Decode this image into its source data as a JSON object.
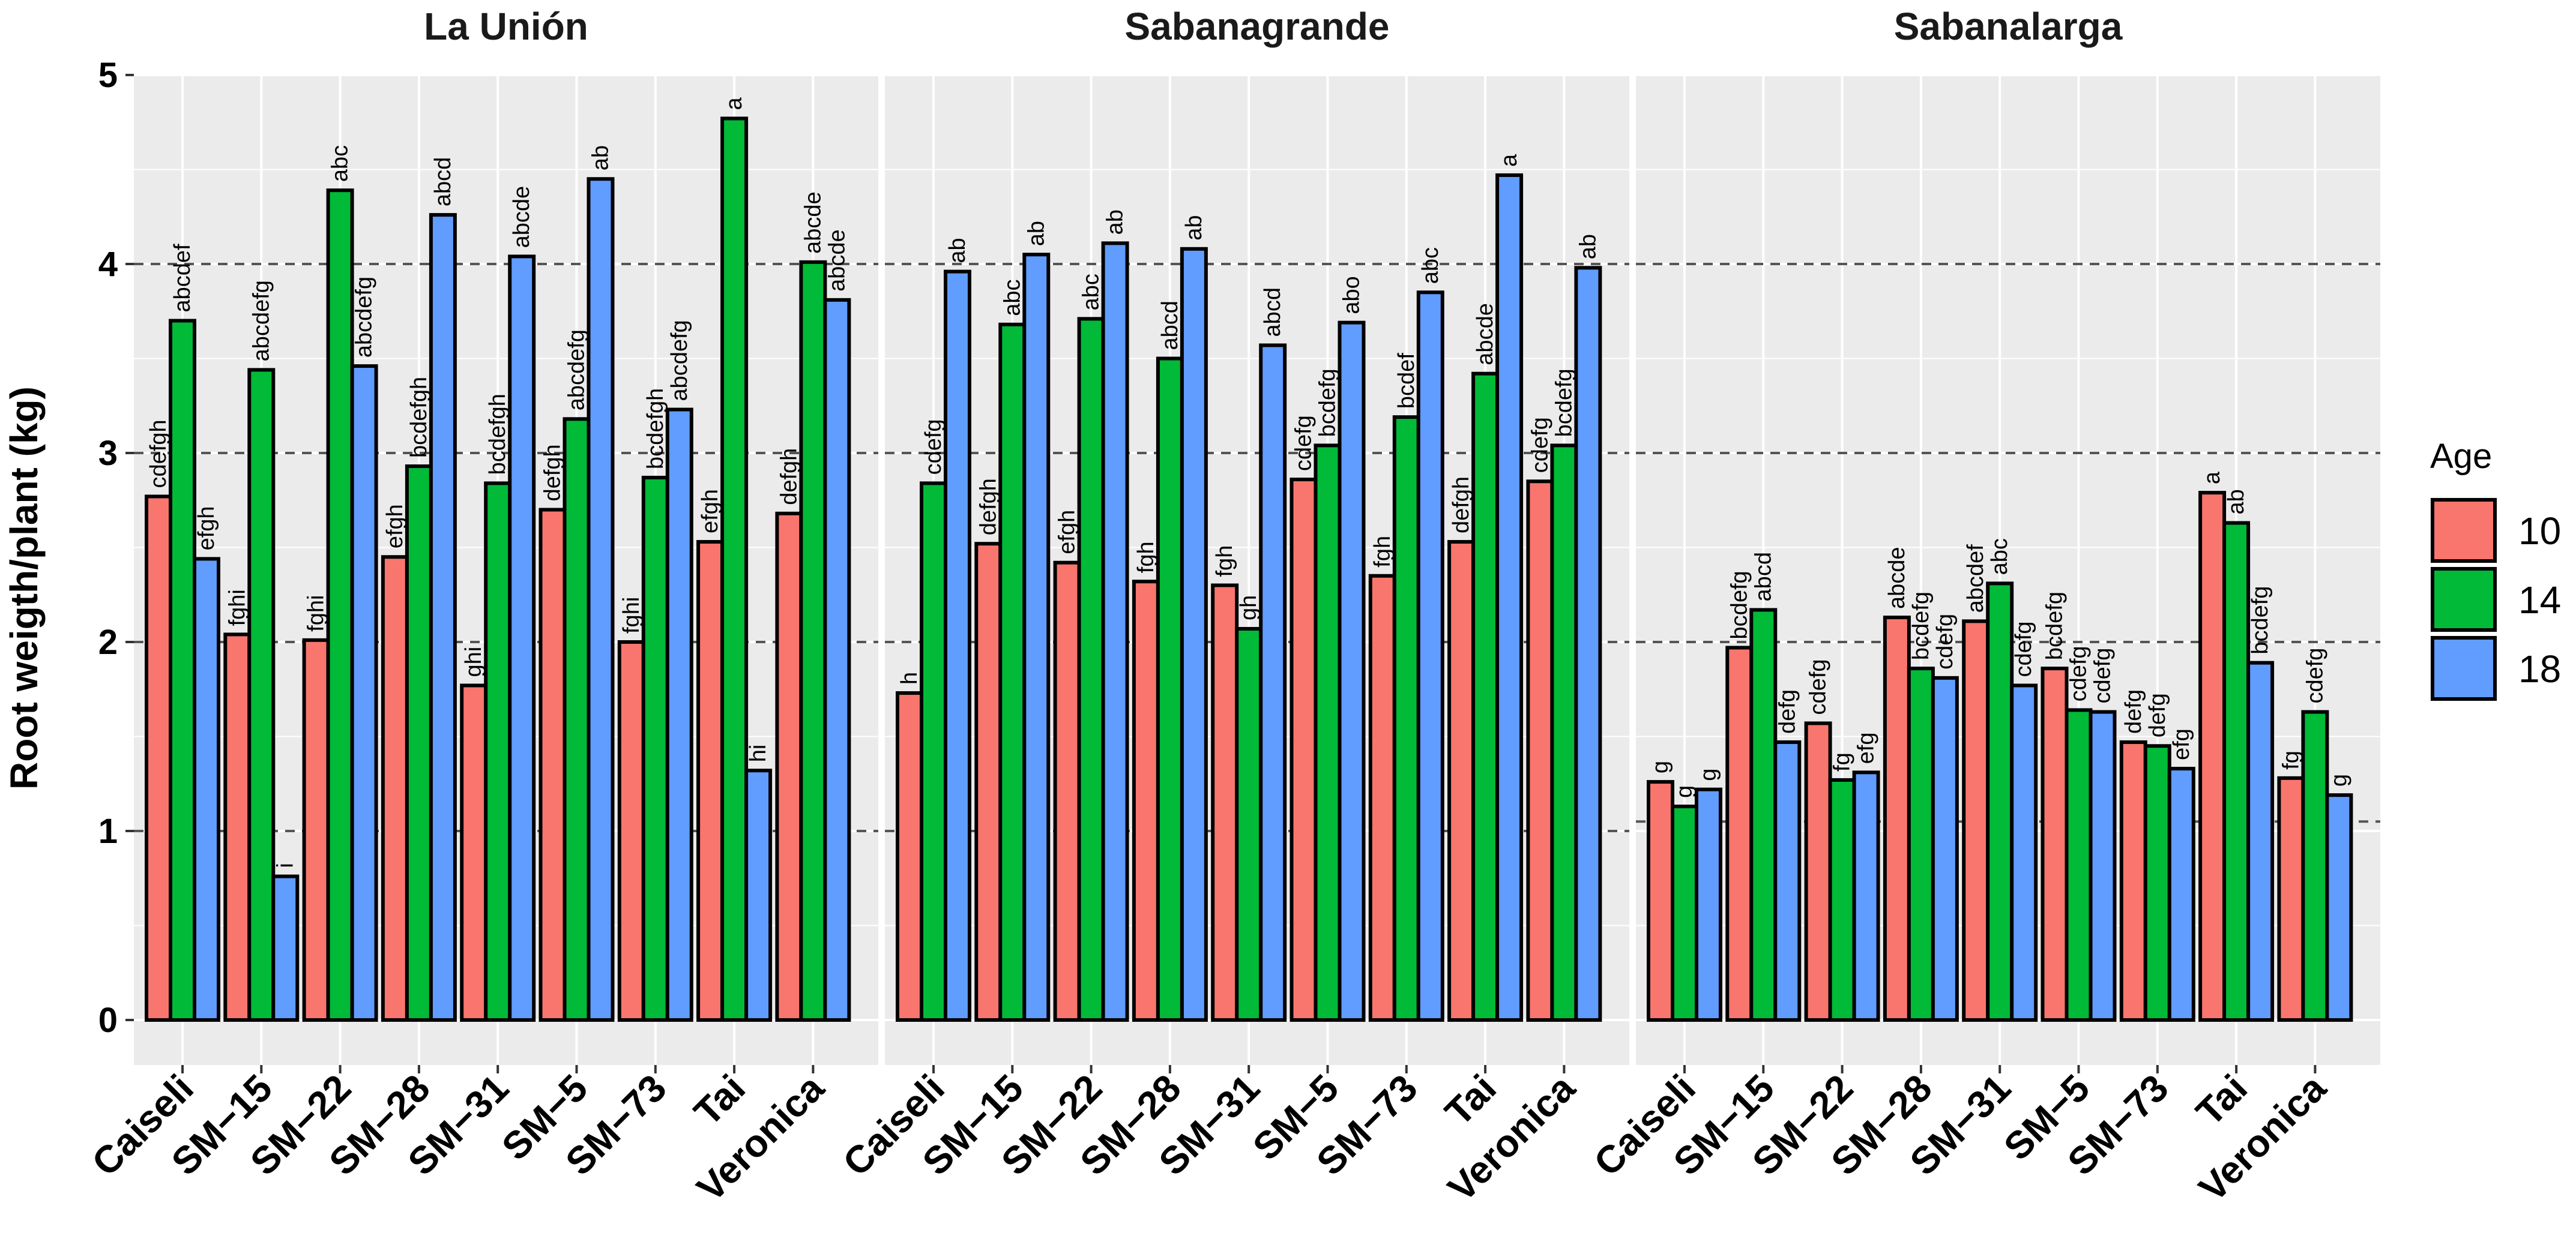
{
  "chart_data": {
    "type": "bar",
    "ylabel": "Root weigth/plant (kg)",
    "xlabel": "",
    "ylim": [
      0,
      5
    ],
    "yticks": [
      "0",
      "1",
      "2",
      "3",
      "4",
      "5"
    ],
    "categories": [
      "Caiseli",
      "SM−15",
      "SM−22",
      "SM−28",
      "SM−31",
      "SM−5",
      "SM−73",
      "Tai",
      "Veronica"
    ],
    "legend": {
      "title": "Age",
      "position": "right",
      "entries": [
        "10",
        "14",
        "18"
      ],
      "colors": [
        "#F8766D",
        "#00BA38",
        "#619CFF"
      ]
    },
    "facets": [
      {
        "title": "La Unión",
        "hlines": [
          1,
          2,
          3,
          4
        ],
        "series": [
          {
            "name": "10",
            "values": [
              2.77,
              2.04,
              2.01,
              2.45,
              1.77,
              2.7,
              2.0,
              2.53,
              2.68
            ],
            "labels": [
              "cdefgh",
              "fghi",
              "fghi",
              "efgh",
              "ghi",
              "defgh",
              "fghi",
              "efgh",
              "defgh"
            ]
          },
          {
            "name": "14",
            "values": [
              3.7,
              3.44,
              4.39,
              2.93,
              2.84,
              3.18,
              2.87,
              4.77,
              4.01
            ],
            "labels": [
              "abcdef",
              "abcdefg",
              "abc",
              "bcdefgh",
              "bcdefgh",
              "abcdefg",
              "bcdefgh",
              "a",
              "abcde"
            ]
          },
          {
            "name": "18",
            "values": [
              2.44,
              0.76,
              3.46,
              4.26,
              4.04,
              4.45,
              3.23,
              1.32,
              3.81
            ],
            "labels": [
              "efgh",
              "i",
              "abcdefg",
              "abcd",
              "abcde",
              "ab",
              "abcdefg",
              "hi",
              "abcde"
            ]
          }
        ]
      },
      {
        "title": "Sabanagrande",
        "hlines": [
          1,
          2,
          3,
          4
        ],
        "series": [
          {
            "name": "10",
            "values": [
              1.73,
              2.52,
              2.42,
              2.32,
              2.3,
              2.86,
              2.35,
              2.53,
              2.85
            ],
            "labels": [
              "h",
              "defgh",
              "efgh",
              "fgh",
              "fgh",
              "cdefg",
              "fgh",
              "defgh",
              "cdefg"
            ]
          },
          {
            "name": "14",
            "values": [
              2.84,
              3.68,
              3.71,
              3.5,
              2.07,
              3.04,
              3.19,
              3.42,
              3.04
            ],
            "labels": [
              "cdefg",
              "abc",
              "abc",
              "abcd",
              "gh",
              "bcdefg",
              "bcdef",
              "abcde",
              "bcdefg"
            ]
          },
          {
            "name": "18",
            "values": [
              3.96,
              4.05,
              4.11,
              4.08,
              3.57,
              3.69,
              3.85,
              4.47,
              3.98
            ],
            "labels": [
              "ab",
              "ab",
              "ab",
              "ab",
              "abcd",
              "abo",
              "abc",
              "a",
              "ab"
            ]
          }
        ]
      },
      {
        "title": "Sabanalarga",
        "hlines": [
          1.05,
          2,
          3,
          4
        ],
        "series": [
          {
            "name": "10",
            "values": [
              1.26,
              1.97,
              1.57,
              2.13,
              2.11,
              1.86,
              1.47,
              2.79,
              1.28
            ],
            "labels": [
              "g",
              "bcdefg",
              "cdefg",
              "abcde",
              "abcdef",
              "bcdefg",
              "defg",
              "a",
              "fg"
            ]
          },
          {
            "name": "14",
            "values": [
              1.13,
              2.17,
              1.27,
              1.86,
              2.31,
              1.64,
              1.45,
              2.63,
              1.63
            ],
            "labels": [
              "g",
              "abcd",
              "fg",
              "bcdefg",
              "abc",
              "cdefg",
              "defg",
              "ab",
              "cdefg"
            ]
          },
          {
            "name": "18",
            "values": [
              1.22,
              1.47,
              1.31,
              1.81,
              1.77,
              1.63,
              1.33,
              1.89,
              1.19
            ],
            "labels": [
              "g",
              "defg",
              "efg",
              "cdefg",
              "cdefg",
              "cdefg",
              "efg",
              "bcdefg",
              "g"
            ]
          }
        ]
      }
    ]
  }
}
